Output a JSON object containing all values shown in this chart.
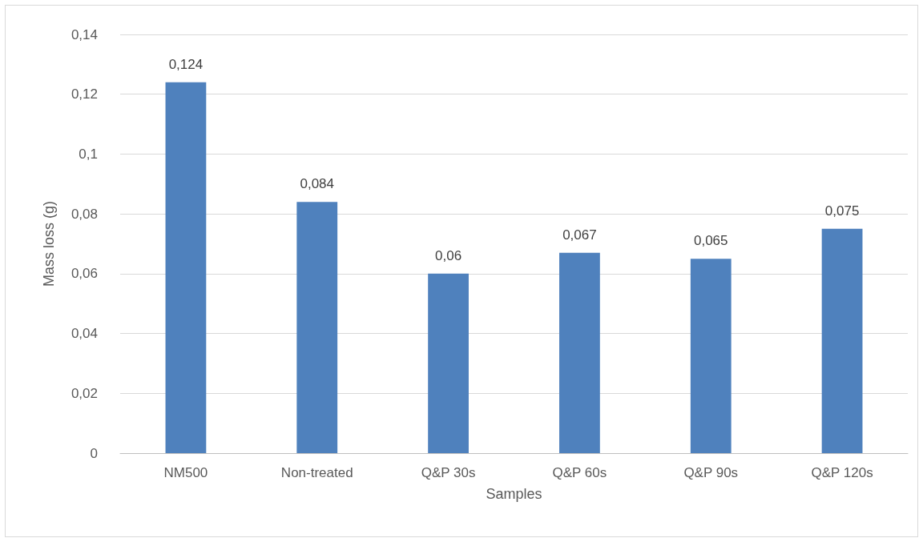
{
  "chart_data": {
    "type": "bar",
    "xlabel": "Samples",
    "ylabel": "Mass loss (g)",
    "categories": [
      "NM500",
      "Non-treated",
      "Q&P 30s",
      "Q&P 60s",
      "Q&P 90s",
      "Q&P 120s"
    ],
    "values": [
      0.124,
      0.084,
      0.06,
      0.067,
      0.065,
      0.075
    ],
    "value_labels": [
      "0,124",
      "0,084",
      "0,06",
      "0,067",
      "0,065",
      "0,075"
    ],
    "color": "#4f81bd",
    "ylim": [
      0,
      0.14
    ],
    "yticks": [
      {
        "value": 0,
        "label": "0"
      },
      {
        "value": 0.02,
        "label": "0,02"
      },
      {
        "value": 0.04,
        "label": "0,04"
      },
      {
        "value": 0.06,
        "label": "0,06"
      },
      {
        "value": 0.08,
        "label": "0,08"
      },
      {
        "value": 0.1,
        "label": "0,1"
      },
      {
        "value": 0.12,
        "label": "0,12"
      },
      {
        "value": 0.14,
        "label": "0,14"
      }
    ],
    "grid": "y"
  }
}
